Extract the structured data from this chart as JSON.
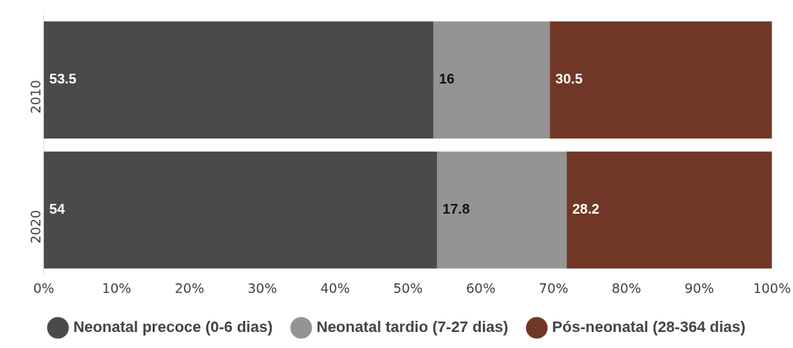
{
  "chart_data": {
    "type": "bar",
    "orientation": "horizontal",
    "stacked": true,
    "categories": [
      "2010",
      "2020"
    ],
    "series": [
      {
        "name": "Neonatal precoce (0-6 dias)",
        "color": "#4a4a4a",
        "values": [
          53.5,
          54
        ]
      },
      {
        "name": "Neonatal tardio (7-27 dias)",
        "color": "#959394",
        "values": [
          16,
          17.8
        ]
      },
      {
        "name": "Pós-neonatal (28-364 dias)",
        "color": "#713726",
        "values": [
          30.5,
          28.2
        ]
      }
    ],
    "xlim": [
      0,
      100
    ],
    "xticks": [
      {
        "value": 0,
        "label": "0%"
      },
      {
        "value": 10,
        "label": "10%"
      },
      {
        "value": 20,
        "label": "20%"
      },
      {
        "value": 30,
        "label": "30%"
      },
      {
        "value": 40,
        "label": "40%"
      },
      {
        "value": 50,
        "label": "50%"
      },
      {
        "value": 60,
        "label": "60%"
      },
      {
        "value": 70,
        "label": "70%"
      },
      {
        "value": 80,
        "label": "80%"
      },
      {
        "value": 90,
        "label": "90%"
      },
      {
        "value": 100,
        "label": "100%"
      }
    ],
    "grid": false,
    "legend": "bottom",
    "data_labels": true
  }
}
